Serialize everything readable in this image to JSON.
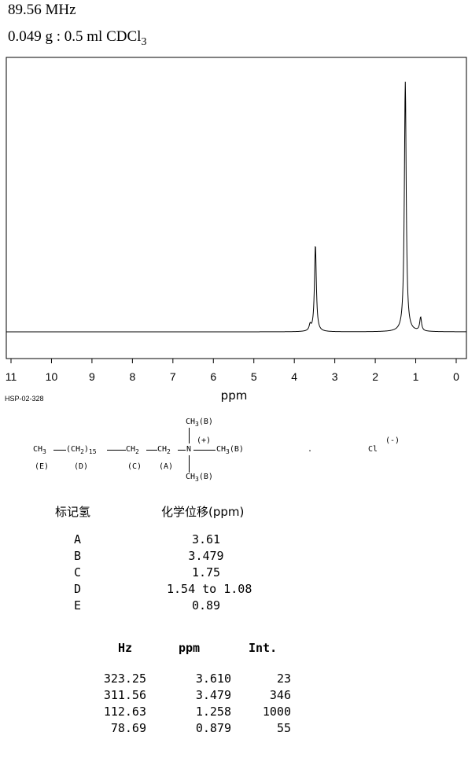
{
  "header": {
    "frequency": "89.56 MHz",
    "sample": "0.049 g : 0.5 ml CDCl",
    "sample_sub": "3"
  },
  "chart_data": {
    "type": "line",
    "xlabel": "ppm",
    "xlim": [
      11,
      0
    ],
    "x_ticks": [
      "11",
      "10",
      "9",
      "8",
      "7",
      "6",
      "5",
      "4",
      "3",
      "2",
      "1",
      "0"
    ],
    "grid": false,
    "peaks": [
      {
        "ppm": 3.61,
        "int": 23
      },
      {
        "ppm": 3.479,
        "int": 346
      },
      {
        "ppm": 1.258,
        "int": 1000
      },
      {
        "ppm": 0.879,
        "int": 55
      }
    ],
    "y_max": 1000
  },
  "spectrum_code": "HSP-02-328",
  "structure": {
    "chain_ch3": "CH",
    "chain_ch2": "(CH",
    "repeat": "15",
    "ch2_c": "CH",
    "ch2_a": "CH",
    "n": "N",
    "charge_plus": "(+)",
    "methyl_top": "CH",
    "methyl_right": "CH",
    "methyl_bottom": "CH",
    "sub2": "2",
    "sub3": "3",
    "label_b": "(B)",
    "label_e": "(E)",
    "label_d": "(D)",
    "label_c": "(C)",
    "label_a": "(A)",
    "dot": ".",
    "counterion": "Cl",
    "charge_minus": "(-)"
  },
  "assignments": {
    "col_label": "标记氢",
    "col_shift": "化学位移(ppm)",
    "rows": [
      {
        "label": "A",
        "shift": "3.61"
      },
      {
        "label": "B",
        "shift": "3.479"
      },
      {
        "label": "C",
        "shift": "1.75"
      },
      {
        "label": "D",
        "shift": "1.54 to 1.08"
      },
      {
        "label": "E",
        "shift": "0.89"
      }
    ]
  },
  "peak_table": {
    "headers": [
      "Hz",
      "ppm",
      "Int."
    ],
    "rows": [
      [
        "323.25",
        "3.610",
        "23"
      ],
      [
        "311.56",
        "3.479",
        "346"
      ],
      [
        "112.63",
        "1.258",
        "1000"
      ],
      [
        "78.69",
        "0.879",
        "55"
      ]
    ]
  }
}
